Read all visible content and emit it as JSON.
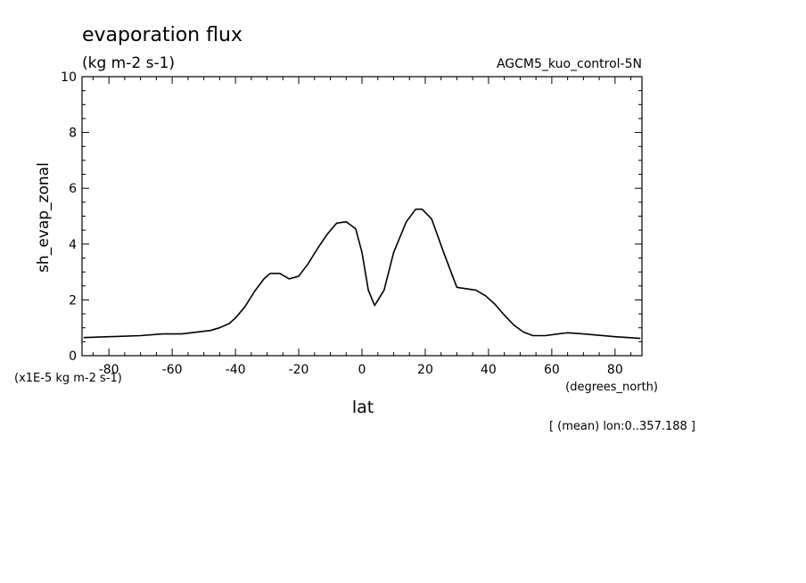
{
  "chart_data": {
    "type": "line",
    "title": "evaporation flux",
    "subtitle": "(kg m-2 s-1)",
    "dataset_label": "AGCM5_kuo_control-5N",
    "xlabel": "lat",
    "x_units": "(degrees_north)",
    "ylabel": "sh_evap_zonal",
    "y_units": "(x1E-5 kg m-2 s-1)",
    "footnote": "[ (mean) lon:0..357.188 ]",
    "xlim": [
      -88.5,
      88.5
    ],
    "ylim": [
      0,
      10
    ],
    "x_ticks": [
      -80,
      -60,
      -40,
      -20,
      0,
      20,
      40,
      60,
      80
    ],
    "y_ticks": [
      0,
      2,
      4,
      6,
      8,
      10
    ],
    "x_tick_labels": [
      "-80",
      "-60",
      "-40",
      "-20",
      "0",
      "20",
      "40",
      "60",
      "80"
    ],
    "y_tick_labels": [
      "0",
      "2",
      "4",
      "6",
      "8",
      "10"
    ],
    "grid": false,
    "series": [
      {
        "x": [
          -88,
          -80,
          -70,
          -63,
          -57,
          -52,
          -48,
          -45,
          -42,
          -40,
          -37,
          -34,
          -31,
          -29,
          -26,
          -23,
          -20,
          -17,
          -14,
          -11,
          -8,
          -5,
          -2,
          0,
          2,
          4,
          7,
          10,
          14,
          17,
          19,
          22,
          26,
          30,
          33,
          36,
          39,
          42,
          45,
          48,
          51,
          54,
          58,
          62,
          65,
          70,
          80,
          88
        ],
        "y": [
          0.65,
          0.68,
          0.72,
          0.78,
          0.78,
          0.85,
          0.9,
          1.0,
          1.15,
          1.35,
          1.75,
          2.3,
          2.75,
          2.95,
          2.95,
          2.75,
          2.85,
          3.3,
          3.85,
          4.35,
          4.75,
          4.8,
          4.55,
          3.7,
          2.35,
          1.8,
          2.35,
          3.7,
          4.8,
          5.25,
          5.25,
          4.9,
          3.65,
          2.45,
          2.4,
          2.35,
          2.15,
          1.85,
          1.45,
          1.1,
          0.85,
          0.72,
          0.72,
          0.78,
          0.82,
          0.78,
          0.68,
          0.62
        ]
      }
    ]
  }
}
